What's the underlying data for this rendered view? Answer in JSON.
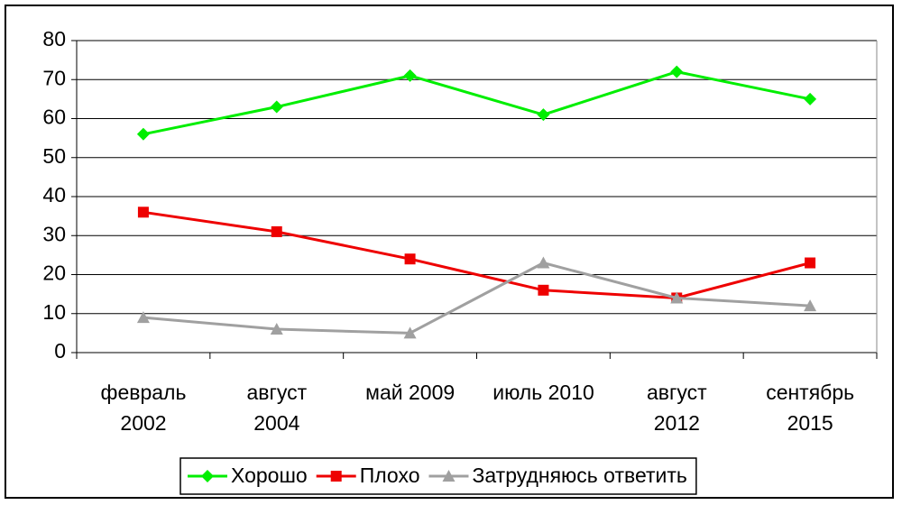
{
  "chart_data": {
    "type": "line",
    "categories": [
      "февраль\n2002",
      "август\n2004",
      "май 2009",
      "июль 2010",
      "август\n2012",
      "сентябрь\n2015"
    ],
    "series": [
      {
        "name": "Хорошо",
        "color": "#00ee00",
        "marker": "diamond",
        "values": [
          56,
          63,
          71,
          61,
          72,
          65
        ]
      },
      {
        "name": "Плохо",
        "color": "#ee0000",
        "marker": "square",
        "values": [
          36,
          31,
          24,
          16,
          14,
          23
        ]
      },
      {
        "name": "Затрудняюсь ответить",
        "color": "#a0a0a0",
        "marker": "triangle",
        "values": [
          9,
          6,
          5,
          23,
          14,
          12
        ]
      }
    ],
    "ylim": [
      0,
      80
    ],
    "yticks": [
      0,
      10,
      20,
      30,
      40,
      50,
      60,
      70,
      80
    ],
    "grid": true,
    "legend": "bottom"
  }
}
